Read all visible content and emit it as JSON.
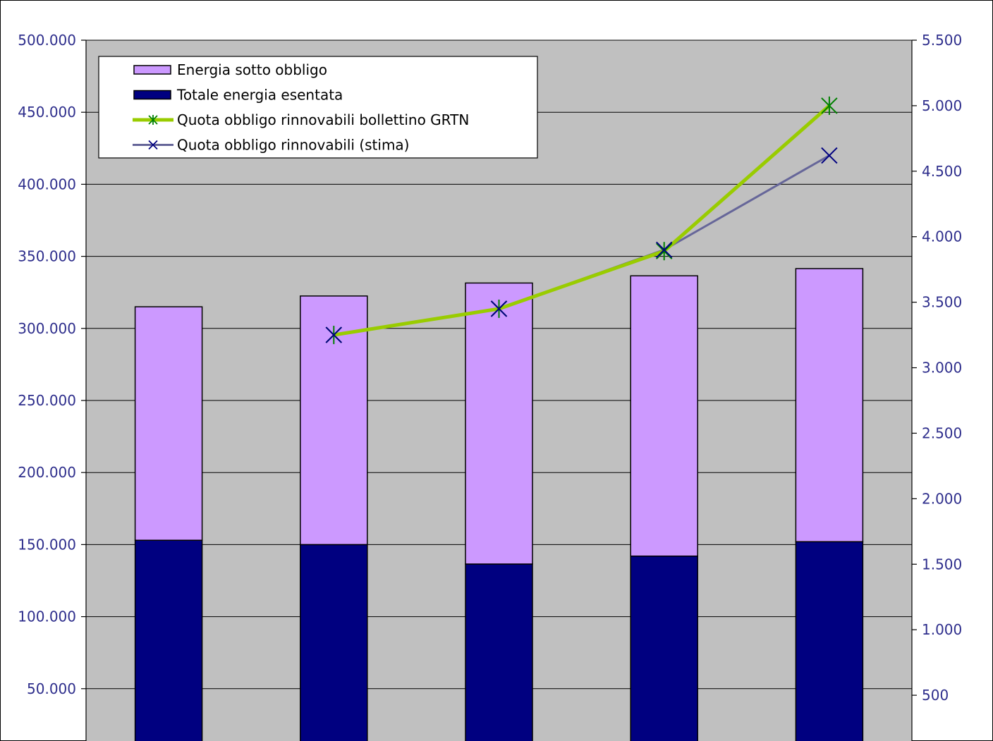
{
  "chart_data": {
    "type": "bar",
    "stacked": true,
    "categories": [
      "",
      "",
      "",
      "",
      ""
    ],
    "series": [
      {
        "name": "Totale energia esentata",
        "values": [
          153000,
          150000,
          136500,
          142000,
          152000
        ],
        "color": "#000080",
        "axis": "left"
      },
      {
        "name": "Energia sotto obbligo",
        "values": [
          162000,
          172500,
          195000,
          194500,
          189500
        ],
        "color": "#cc99ff",
        "axis": "left"
      }
    ],
    "lines": [
      {
        "name": "Quota obbligo rinnovabili bollettino GRTN",
        "values": [
          null,
          3250,
          3450,
          3890,
          5000
        ],
        "color": "#99cc00",
        "marker": "asterisk",
        "axis": "right"
      },
      {
        "name": "Quota obbligo rinnovabili (stima)",
        "values": [
          null,
          3250,
          3450,
          3900,
          4620
        ],
        "color": "#666699",
        "marker": "x",
        "axis": "right"
      }
    ],
    "left_axis": {
      "ylim": [
        0,
        500000
      ],
      "ticks": [
        "50.000",
        "100.000",
        "150.000",
        "200.000",
        "250.000",
        "300.000",
        "350.000",
        "400.000",
        "450.000",
        "500.000"
      ]
    },
    "right_axis": {
      "ylim": [
        0,
        5500
      ],
      "ticks": [
        "500",
        "1.000",
        "1.500",
        "2.000",
        "2.500",
        "3.000",
        "3.500",
        "4.000",
        "4.500",
        "5.000",
        "5.500"
      ]
    },
    "legend": {
      "position": "top-left",
      "entries": [
        "Energia sotto obbligo",
        "Totale energia esentata",
        "Quota obbligo rinnovabili bollettino GRTN",
        "Quota obbligo rinnovabili (stima)"
      ]
    },
    "grid": true,
    "plot_background": "#c0c0c0"
  }
}
